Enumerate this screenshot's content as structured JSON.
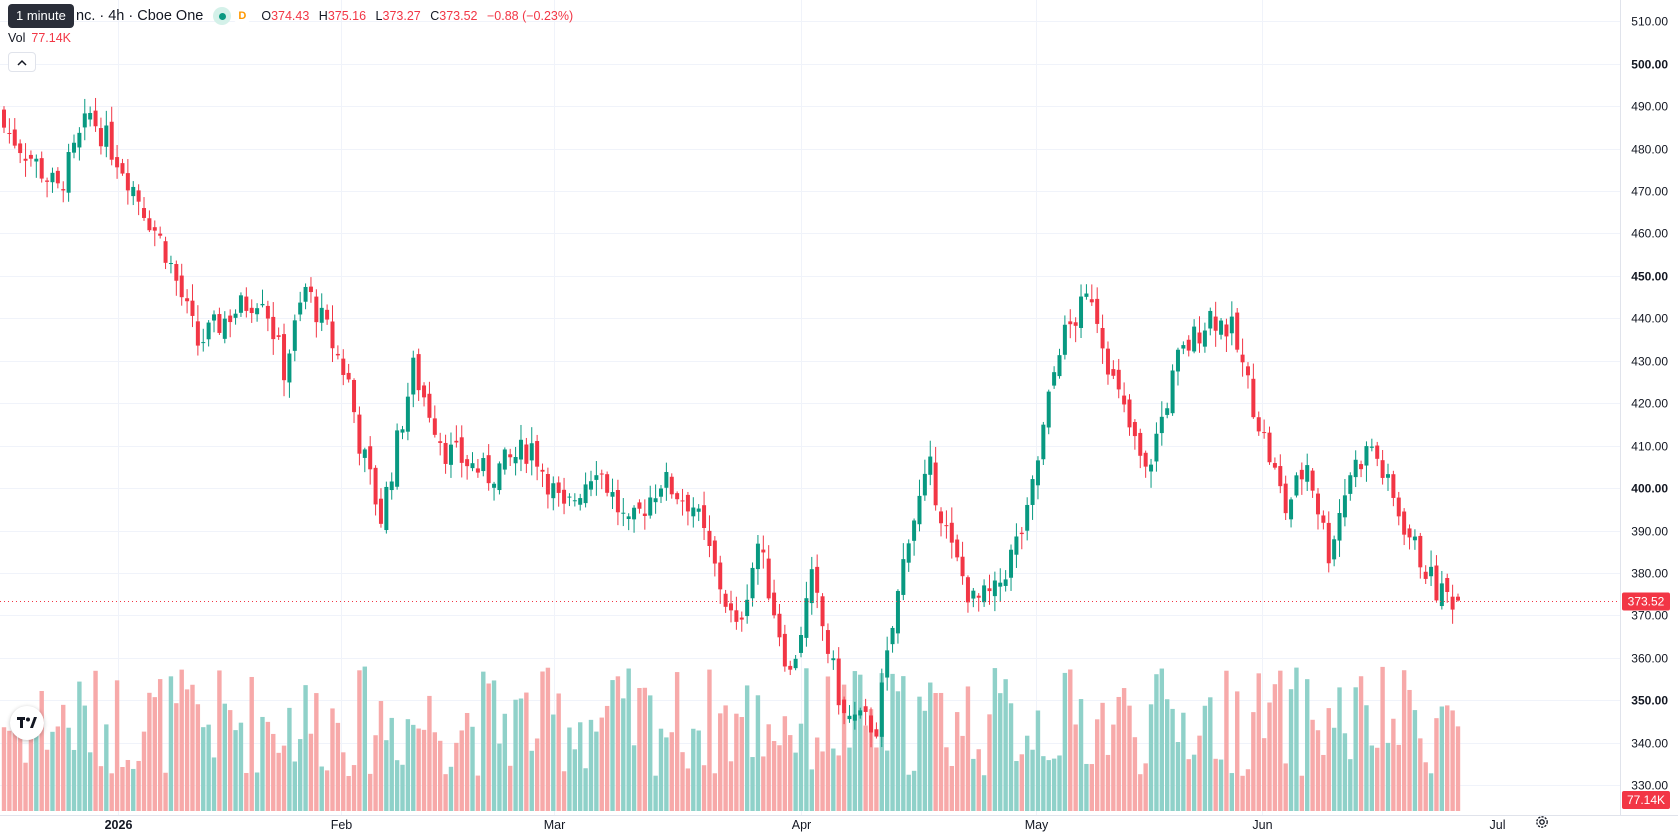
{
  "header": {
    "tooltip": "1 minute",
    "symbol": "nc. · 4h · Cboe One",
    "market_status_badge": "D",
    "ohlc": {
      "o_label": "O",
      "o": "374.43",
      "h_label": "H",
      "h": "375.16",
      "l_label": "L",
      "l": "373.27",
      "c_label": "C",
      "c": "373.52",
      "change": "−0.88 (−0.23%)"
    },
    "volume_label": "Vol",
    "volume_value": "77.14K"
  },
  "icons": {
    "collapse": "chevron-up-icon",
    "logo": "tradingview-logo",
    "settings": "gear-icon"
  },
  "colors": {
    "up": "#089981",
    "down": "#f23645",
    "volume_up": "#8fd1c9",
    "volume_down": "#f7a9a9",
    "grid": "#f0f3fa"
  },
  "chart_data": {
    "type": "candlestick",
    "interval": "4h",
    "y_axis": {
      "range": [
        323,
        515
      ],
      "tick_labels": [
        "510.00",
        "500.00",
        "490.00",
        "480.00",
        "470.00",
        "460.00",
        "450.00",
        "440.00",
        "430.00",
        "420.00",
        "410.00",
        "400.00",
        "390.00",
        "380.00",
        "370.00",
        "360.00",
        "350.00",
        "340.00",
        "330.00"
      ],
      "bold_ticks": [
        "500.00",
        "450.00",
        "400.00",
        "350.00"
      ]
    },
    "x_axis": {
      "labels": [
        "2026",
        "Feb",
        "Mar",
        "Apr",
        "May",
        "Jun",
        "Jul"
      ],
      "bold_labels": [
        "2026"
      ]
    },
    "last_price_label": "373.52",
    "last_volume_label": "77.14K",
    "grid": true,
    "series": [
      {
        "name": "price",
        "close_path": [
          {
            "t": 0,
            "v": 485
          },
          {
            "t": 5,
            "v": 478
          },
          {
            "t": 10,
            "v": 470
          },
          {
            "t": 16,
            "v": 488
          },
          {
            "t": 22,
            "v": 476
          },
          {
            "t": 30,
            "v": 456
          },
          {
            "t": 36,
            "v": 434
          },
          {
            "t": 42,
            "v": 441
          },
          {
            "t": 48,
            "v": 446
          },
          {
            "t": 52,
            "v": 428
          },
          {
            "t": 56,
            "v": 447
          },
          {
            "t": 60,
            "v": 437
          },
          {
            "t": 64,
            "v": 425
          },
          {
            "t": 66,
            "v": 411
          },
          {
            "t": 70,
            "v": 393
          },
          {
            "t": 76,
            "v": 428
          },
          {
            "t": 82,
            "v": 409
          },
          {
            "t": 90,
            "v": 403
          },
          {
            "t": 98,
            "v": 410
          },
          {
            "t": 104,
            "v": 394
          },
          {
            "t": 110,
            "v": 406
          },
          {
            "t": 116,
            "v": 390
          },
          {
            "t": 122,
            "v": 402
          },
          {
            "t": 128,
            "v": 396
          },
          {
            "t": 136,
            "v": 366
          },
          {
            "t": 140,
            "v": 387
          },
          {
            "t": 146,
            "v": 356
          },
          {
            "t": 150,
            "v": 378
          },
          {
            "t": 156,
            "v": 346
          },
          {
            "t": 162,
            "v": 344
          },
          {
            "t": 168,
            "v": 390
          },
          {
            "t": 172,
            "v": 404
          },
          {
            "t": 176,
            "v": 385
          },
          {
            "t": 180,
            "v": 373
          },
          {
            "t": 184,
            "v": 375
          },
          {
            "t": 190,
            "v": 393
          },
          {
            "t": 196,
            "v": 434
          },
          {
            "t": 202,
            "v": 446
          },
          {
            "t": 206,
            "v": 425
          },
          {
            "t": 212,
            "v": 403
          },
          {
            "t": 218,
            "v": 430
          },
          {
            "t": 224,
            "v": 441
          },
          {
            "t": 228,
            "v": 437
          },
          {
            "t": 232,
            "v": 420
          },
          {
            "t": 238,
            "v": 395
          },
          {
            "t": 242,
            "v": 406
          },
          {
            "t": 246,
            "v": 385
          },
          {
            "t": 250,
            "v": 404
          },
          {
            "t": 254,
            "v": 410
          },
          {
            "t": 258,
            "v": 397
          },
          {
            "t": 262,
            "v": 386
          },
          {
            "t": 266,
            "v": 376
          },
          {
            "t": 270,
            "v": 373.52
          }
        ]
      }
    ]
  }
}
